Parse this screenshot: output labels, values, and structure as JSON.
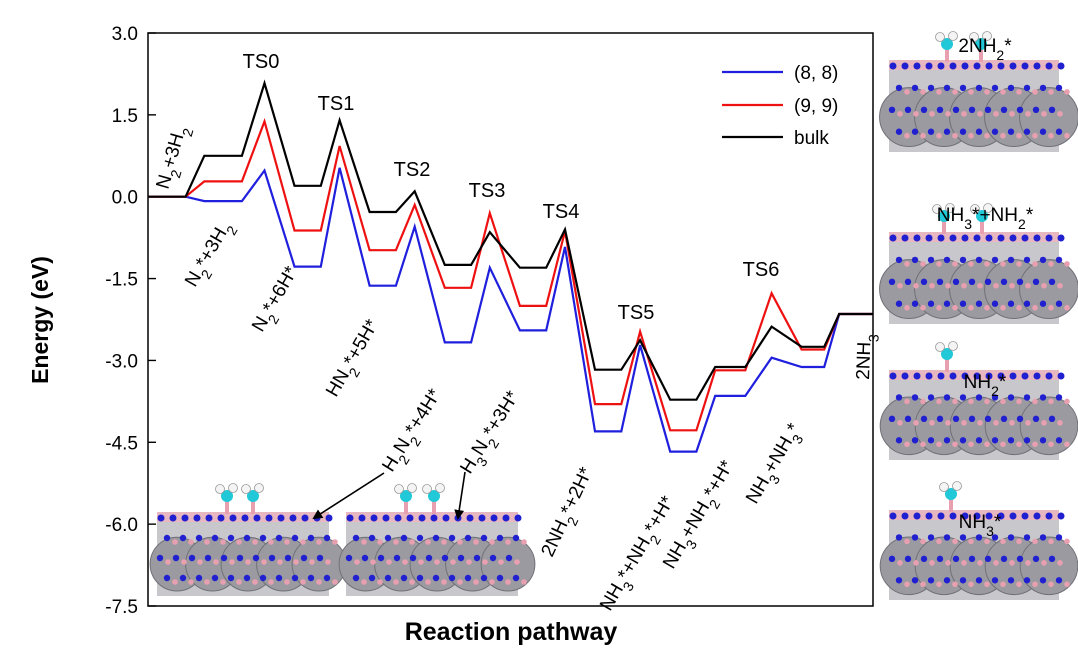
{
  "chart_data": {
    "type": "line",
    "xlabel": "Reaction pathway",
    "ylabel": "Energy (eV)",
    "ylim": [
      -7.5,
      3.0
    ],
    "yticks": [
      "3.0",
      "1.5",
      "0.0",
      "-1.5",
      "-3.0",
      "-4.5",
      "-6.0",
      "-7.5"
    ],
    "ytick_values": [
      3.0,
      1.5,
      0.0,
      -1.5,
      -3.0,
      -4.5,
      -6.0,
      -7.5
    ],
    "series": [
      {
        "name": "(8, 8)",
        "color": "#1f1fdd",
        "points": [
          [
            0,
            0
          ],
          [
            1,
            0
          ],
          [
            1.5,
            -0.08
          ],
          [
            2.5,
            -0.08
          ],
          [
            3.1,
            0.48
          ],
          [
            3.9,
            -1.28
          ],
          [
            4.6,
            -1.28
          ],
          [
            5.1,
            0.53
          ],
          [
            5.9,
            -1.63
          ],
          [
            6.6,
            -1.63
          ],
          [
            7.1,
            -0.55
          ],
          [
            7.9,
            -2.67
          ],
          [
            8.6,
            -2.67
          ],
          [
            9.1,
            -1.3
          ],
          [
            9.9,
            -2.45
          ],
          [
            10.6,
            -2.45
          ],
          [
            11.1,
            -0.92
          ],
          [
            11.9,
            -4.3
          ],
          [
            12.6,
            -4.3
          ],
          [
            13.1,
            -2.72
          ],
          [
            13.9,
            -4.67
          ],
          [
            14.6,
            -4.67
          ],
          [
            15.1,
            -3.65
          ],
          [
            15.9,
            -3.65
          ],
          [
            16.6,
            -2.95
          ],
          [
            17.4,
            -3.12
          ],
          [
            18.0,
            -3.12
          ],
          [
            18.4,
            -2.15
          ],
          [
            19.3,
            -2.15
          ]
        ]
      },
      {
        "name": "(9, 9)",
        "color": "#ee1111",
        "points": [
          [
            0,
            0
          ],
          [
            1,
            0
          ],
          [
            1.5,
            0.28
          ],
          [
            2.5,
            0.28
          ],
          [
            3.1,
            1.38
          ],
          [
            3.9,
            -0.62
          ],
          [
            4.6,
            -0.62
          ],
          [
            5.1,
            0.93
          ],
          [
            5.9,
            -0.98
          ],
          [
            6.6,
            -0.98
          ],
          [
            7.1,
            -0.15
          ],
          [
            7.9,
            -1.67
          ],
          [
            8.6,
            -1.67
          ],
          [
            9.1,
            -0.3
          ],
          [
            9.9,
            -2.0
          ],
          [
            10.6,
            -2.0
          ],
          [
            11.1,
            -0.63
          ],
          [
            11.9,
            -3.8
          ],
          [
            12.6,
            -3.8
          ],
          [
            13.1,
            -2.47
          ],
          [
            13.9,
            -4.28
          ],
          [
            14.6,
            -4.28
          ],
          [
            15.1,
            -3.18
          ],
          [
            15.9,
            -3.18
          ],
          [
            16.6,
            -1.77
          ],
          [
            17.4,
            -2.8
          ],
          [
            18.0,
            -2.8
          ],
          [
            18.4,
            -2.15
          ],
          [
            19.3,
            -2.15
          ]
        ]
      },
      {
        "name": "bulk",
        "color": "#000000",
        "points": [
          [
            0,
            0
          ],
          [
            1,
            0
          ],
          [
            1.5,
            0.75
          ],
          [
            2.5,
            0.75
          ],
          [
            3.1,
            2.08
          ],
          [
            3.9,
            0.2
          ],
          [
            4.6,
            0.2
          ],
          [
            5.1,
            1.4
          ],
          [
            5.9,
            -0.28
          ],
          [
            6.6,
            -0.28
          ],
          [
            7.1,
            0.1
          ],
          [
            7.9,
            -1.25
          ],
          [
            8.6,
            -1.25
          ],
          [
            9.1,
            -0.65
          ],
          [
            9.9,
            -1.3
          ],
          [
            10.6,
            -1.3
          ],
          [
            11.1,
            -0.6
          ],
          [
            11.9,
            -3.17
          ],
          [
            12.6,
            -3.17
          ],
          [
            13.1,
            -2.63
          ],
          [
            13.9,
            -3.72
          ],
          [
            14.6,
            -3.72
          ],
          [
            15.1,
            -3.12
          ],
          [
            15.9,
            -3.12
          ],
          [
            16.6,
            -2.38
          ],
          [
            17.4,
            -2.75
          ],
          [
            18.0,
            -2.75
          ],
          [
            18.4,
            -2.15
          ],
          [
            19.3,
            -2.15
          ]
        ]
      }
    ],
    "ts_labels": [
      "TS0",
      "TS1",
      "TS2",
      "TS3",
      "TS4",
      "TS5",
      "TS6"
    ],
    "species_labels": [
      {
        "text": "N2+3H2"
      },
      {
        "text": "N2*+3H2"
      },
      {
        "text": "N2*+6H*"
      },
      {
        "text": "HN2*+5H*"
      },
      {
        "text": "H2N2*+4H*"
      },
      {
        "text": "H3N2*+3H*"
      },
      {
        "text": "2NH2*+2H*"
      },
      {
        "text": "NH3*+NH2*+H*"
      },
      {
        "text": "NH3+NH2*+H*"
      },
      {
        "text": "NH3+NH3*"
      },
      {
        "text": "2NH3"
      }
    ],
    "legend_position": "top-right"
  },
  "panels": [
    {
      "label": "2NH2*"
    },
    {
      "label": "NH3*+NH2*"
    },
    {
      "label": "NH2*"
    },
    {
      "label": "NH3*"
    }
  ]
}
